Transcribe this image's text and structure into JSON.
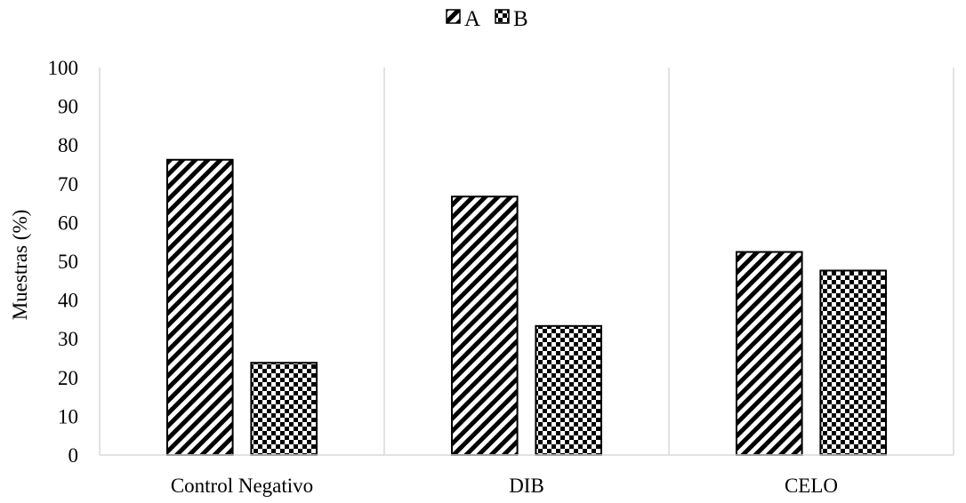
{
  "chart_data": {
    "type": "bar",
    "title": "",
    "xlabel": "",
    "ylabel": "Muestras (%)",
    "categories": [
      "Control Negativo",
      "DIB",
      "CELO"
    ],
    "series": [
      {
        "name": "A",
        "values": [
          76.2,
          66.7,
          52.4
        ],
        "pattern": "diagonal-stripes"
      },
      {
        "name": "B",
        "values": [
          23.8,
          33.3,
          47.6
        ],
        "pattern": "checkerboard"
      }
    ],
    "ylim": [
      0,
      100
    ],
    "yticks": [
      0,
      10,
      20,
      30,
      40,
      50,
      60,
      70,
      80,
      90,
      100
    ],
    "grid": "vertical category separators",
    "legend": "top-center",
    "colors": {
      "ink": "#000000",
      "fill": "#ffffff",
      "separator": "#d9d9d9"
    }
  }
}
